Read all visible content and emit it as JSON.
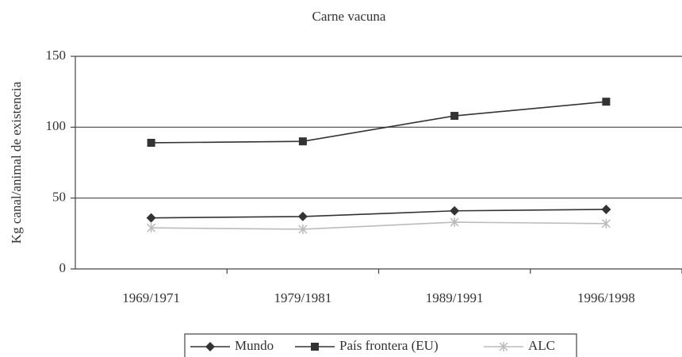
{
  "chart_data": {
    "type": "line",
    "title": "Carne vacuna",
    "ylabel": "Kg canal/animal de existencia",
    "categories": [
      "1969/1971",
      "1979/1981",
      "1989/1991",
      "1996/1998"
    ],
    "series": [
      {
        "name": "Mundo",
        "color": "#333333",
        "marker": "diamond",
        "values": [
          36,
          37,
          41,
          42
        ]
      },
      {
        "name": "País frontera (EU)",
        "color": "#333333",
        "marker": "square",
        "values": [
          89,
          90,
          108,
          118
        ]
      },
      {
        "name": "ALC",
        "color": "#bbbbbb",
        "marker": "star",
        "values": [
          29,
          28,
          33,
          32
        ]
      }
    ],
    "ylim": [
      0,
      150
    ],
    "yticks": [
      0,
      50,
      100,
      150
    ],
    "grid": true,
    "legend": "bottom"
  }
}
